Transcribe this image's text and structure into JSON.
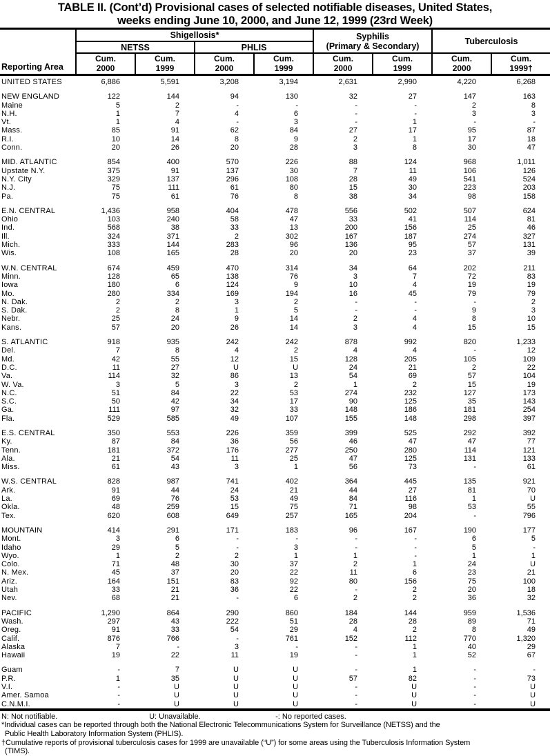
{
  "title": {
    "line1": "TABLE II. (Cont’d) Provisional cases of selected notifiable diseases, United States,",
    "line2": "weeks ending June 10, 2000, and June 12, 1999 (23rd Week)"
  },
  "header": {
    "reporting_area": "Reporting Area",
    "shigellosis": "Shigellosis*",
    "netss": "NETSS",
    "phlis": "PHLIS",
    "syphilis_line1": "Syphilis",
    "syphilis_line2": "(Primary & Secondary)",
    "tuberculosis": "Tuberculosis",
    "cum_label": "Cum.",
    "years": [
      "2000",
      "1999",
      "2000",
      "1999",
      "2000",
      "1999",
      "2000",
      "1999†"
    ]
  },
  "table": {
    "sections": [
      {
        "rows": [
          [
            "UNITED STATES",
            "6,886",
            "5,591",
            "3,208",
            "3,194",
            "2,631",
            "2,990",
            "4,220",
            "6,268"
          ]
        ]
      },
      {
        "rows": [
          [
            "NEW ENGLAND",
            "122",
            "144",
            "94",
            "130",
            "32",
            "27",
            "147",
            "163"
          ],
          [
            "Maine",
            "5",
            "2",
            "-",
            "-",
            "-",
            "-",
            "2",
            "8"
          ],
          [
            "N.H.",
            "1",
            "7",
            "4",
            "6",
            "-",
            "-",
            "3",
            "3"
          ],
          [
            "Vt.",
            "1",
            "4",
            "-",
            "3",
            "-",
            "1",
            "-",
            "-"
          ],
          [
            "Mass.",
            "85",
            "91",
            "62",
            "84",
            "27",
            "17",
            "95",
            "87"
          ],
          [
            "R.I.",
            "10",
            "14",
            "8",
            "9",
            "2",
            "1",
            "17",
            "18"
          ],
          [
            "Conn.",
            "20",
            "26",
            "20",
            "28",
            "3",
            "8",
            "30",
            "47"
          ]
        ]
      },
      {
        "rows": [
          [
            "MID. ATLANTIC",
            "854",
            "400",
            "570",
            "226",
            "88",
            "124",
            "968",
            "1,011"
          ],
          [
            "Upstate N.Y.",
            "375",
            "91",
            "137",
            "30",
            "7",
            "11",
            "106",
            "126"
          ],
          [
            "N.Y. City",
            "329",
            "137",
            "296",
            "108",
            "28",
            "49",
            "541",
            "524"
          ],
          [
            "N.J.",
            "75",
            "111",
            "61",
            "80",
            "15",
            "30",
            "223",
            "203"
          ],
          [
            "Pa.",
            "75",
            "61",
            "76",
            "8",
            "38",
            "34",
            "98",
            "158"
          ]
        ]
      },
      {
        "rows": [
          [
            "E.N. CENTRAL",
            "1,436",
            "958",
            "404",
            "478",
            "556",
            "502",
            "507",
            "624"
          ],
          [
            "Ohio",
            "103",
            "240",
            "58",
            "47",
            "33",
            "41",
            "114",
            "81"
          ],
          [
            "Ind.",
            "568",
            "38",
            "33",
            "13",
            "200",
            "156",
            "25",
            "46"
          ],
          [
            "Ill.",
            "324",
            "371",
            "2",
            "302",
            "167",
            "187",
            "274",
            "327"
          ],
          [
            "Mich.",
            "333",
            "144",
            "283",
            "96",
            "136",
            "95",
            "57",
            "131"
          ],
          [
            "Wis.",
            "108",
            "165",
            "28",
            "20",
            "20",
            "23",
            "37",
            "39"
          ]
        ]
      },
      {
        "rows": [
          [
            "W.N. CENTRAL",
            "674",
            "459",
            "470",
            "314",
            "34",
            "64",
            "202",
            "211"
          ],
          [
            "Minn.",
            "128",
            "65",
            "138",
            "76",
            "3",
            "7",
            "72",
            "83"
          ],
          [
            "Iowa",
            "180",
            "6",
            "124",
            "9",
            "10",
            "4",
            "19",
            "19"
          ],
          [
            "Mo.",
            "280",
            "334",
            "169",
            "194",
            "16",
            "45",
            "79",
            "79"
          ],
          [
            "N. Dak.",
            "2",
            "2",
            "3",
            "2",
            "-",
            "-",
            "-",
            "2"
          ],
          [
            "S. Dak.",
            "2",
            "8",
            "1",
            "5",
            "-",
            "-",
            "9",
            "3"
          ],
          [
            "Nebr.",
            "25",
            "24",
            "9",
            "14",
            "2",
            "4",
            "8",
            "10"
          ],
          [
            "Kans.",
            "57",
            "20",
            "26",
            "14",
            "3",
            "4",
            "15",
            "15"
          ]
        ]
      },
      {
        "rows": [
          [
            "S. ATLANTIC",
            "918",
            "935",
            "242",
            "242",
            "878",
            "992",
            "820",
            "1,233"
          ],
          [
            "Del.",
            "7",
            "8",
            "4",
            "2",
            "4",
            "4",
            "-",
            "12"
          ],
          [
            "Md.",
            "42",
            "55",
            "12",
            "15",
            "128",
            "205",
            "105",
            "109"
          ],
          [
            "D.C.",
            "11",
            "27",
            "U",
            "U",
            "24",
            "21",
            "2",
            "22"
          ],
          [
            "Va.",
            "114",
            "32",
            "86",
            "13",
            "54",
            "69",
            "57",
            "104"
          ],
          [
            "W. Va.",
            "3",
            "5",
            "3",
            "2",
            "1",
            "2",
            "15",
            "19"
          ],
          [
            "N.C.",
            "51",
            "84",
            "22",
            "53",
            "274",
            "232",
            "127",
            "173"
          ],
          [
            "S.C.",
            "50",
            "42",
            "34",
            "17",
            "90",
            "125",
            "35",
            "143"
          ],
          [
            "Ga.",
            "111",
            "97",
            "32",
            "33",
            "148",
            "186",
            "181",
            "254"
          ],
          [
            "Fla.",
            "529",
            "585",
            "49",
            "107",
            "155",
            "148",
            "298",
            "397"
          ]
        ]
      },
      {
        "rows": [
          [
            "E.S. CENTRAL",
            "350",
            "553",
            "226",
            "359",
            "399",
            "525",
            "292",
            "392"
          ],
          [
            "Ky.",
            "87",
            "84",
            "36",
            "56",
            "46",
            "47",
            "47",
            "77"
          ],
          [
            "Tenn.",
            "181",
            "372",
            "176",
            "277",
            "250",
            "280",
            "114",
            "121"
          ],
          [
            "Ala.",
            "21",
            "54",
            "11",
            "25",
            "47",
            "125",
            "131",
            "133"
          ],
          [
            "Miss.",
            "61",
            "43",
            "3",
            "1",
            "56",
            "73",
            "-",
            "61"
          ]
        ]
      },
      {
        "rows": [
          [
            "W.S. CENTRAL",
            "828",
            "987",
            "741",
            "402",
            "364",
            "445",
            "135",
            "921"
          ],
          [
            "Ark.",
            "91",
            "44",
            "24",
            "21",
            "44",
            "27",
            "81",
            "70"
          ],
          [
            "La.",
            "69",
            "76",
            "53",
            "49",
            "84",
            "116",
            "1",
            "U"
          ],
          [
            "Okla.",
            "48",
            "259",
            "15",
            "75",
            "71",
            "98",
            "53",
            "55"
          ],
          [
            "Tex.",
            "620",
            "608",
            "649",
            "257",
            "165",
            "204",
            "-",
            "796"
          ]
        ]
      },
      {
        "rows": [
          [
            "MOUNTAIN",
            "414",
            "291",
            "171",
            "183",
            "96",
            "167",
            "190",
            "177"
          ],
          [
            "Mont.",
            "3",
            "6",
            "-",
            "-",
            "-",
            "-",
            "6",
            "5"
          ],
          [
            "Idaho",
            "29",
            "5",
            "-",
            "3",
            "-",
            "-",
            "5",
            "-"
          ],
          [
            "Wyo.",
            "1",
            "2",
            "2",
            "1",
            "1",
            "-",
            "1",
            "1"
          ],
          [
            "Colo.",
            "71",
            "48",
            "30",
            "37",
            "2",
            "1",
            "24",
            "U"
          ],
          [
            "N. Mex.",
            "45",
            "37",
            "20",
            "22",
            "11",
            "6",
            "23",
            "21"
          ],
          [
            "Ariz.",
            "164",
            "151",
            "83",
            "92",
            "80",
            "156",
            "75",
            "100"
          ],
          [
            "Utah",
            "33",
            "21",
            "36",
            "22",
            "-",
            "2",
            "20",
            "18"
          ],
          [
            "Nev.",
            "68",
            "21",
            "-",
            "6",
            "2",
            "2",
            "36",
            "32"
          ]
        ]
      },
      {
        "rows": [
          [
            "PACIFIC",
            "1,290",
            "864",
            "290",
            "860",
            "184",
            "144",
            "959",
            "1,536"
          ],
          [
            "Wash.",
            "297",
            "43",
            "222",
            "51",
            "28",
            "28",
            "89",
            "71"
          ],
          [
            "Oreg.",
            "91",
            "33",
            "54",
            "29",
            "4",
            "2",
            "8",
            "49"
          ],
          [
            "Calif.",
            "876",
            "766",
            "-",
            "761",
            "152",
            "112",
            "770",
            "1,320"
          ],
          [
            "Alaska",
            "7",
            "-",
            "3",
            "-",
            "-",
            "1",
            "40",
            "29"
          ],
          [
            "Hawaii",
            "19",
            "22",
            "11",
            "19",
            "-",
            "1",
            "52",
            "67"
          ]
        ]
      },
      {
        "rows": [
          [
            "Guam",
            "-",
            "7",
            "U",
            "U",
            "-",
            "1",
            "-",
            "-"
          ],
          [
            "P.R.",
            "1",
            "35",
            "U",
            "U",
            "57",
            "82",
            "-",
            "73"
          ],
          [
            "V.I.",
            "-",
            "U",
            "U",
            "U",
            "-",
            "U",
            "-",
            "U"
          ],
          [
            "Amer. Samoa",
            "-",
            "U",
            "U",
            "U",
            "-",
            "U",
            "-",
            "U"
          ],
          [
            "C.N.M.I.",
            "-",
            "U",
            "U",
            "U",
            "-",
            "U",
            "-",
            "U"
          ]
        ]
      }
    ]
  },
  "footnotes": {
    "legend_n": "N: Not notifiable.",
    "legend_u": "U: Unavailable.",
    "legend_dash": "-: No reported cases.",
    "fn_star_line1": "*Individual cases can be reported through both the National Electronic Telecommunications System for Surveillance (NETSS) and the",
    "fn_star_line2": "Public Health Laboratory Information System (PHLIS).",
    "fn_dagger_line1": "†Cumulative reports of provisional tuberculosis cases for 1999 are unavailable (“U”) for some areas using the Tuberculosis Information System",
    "fn_dagger_line2": "(TIMS)."
  }
}
